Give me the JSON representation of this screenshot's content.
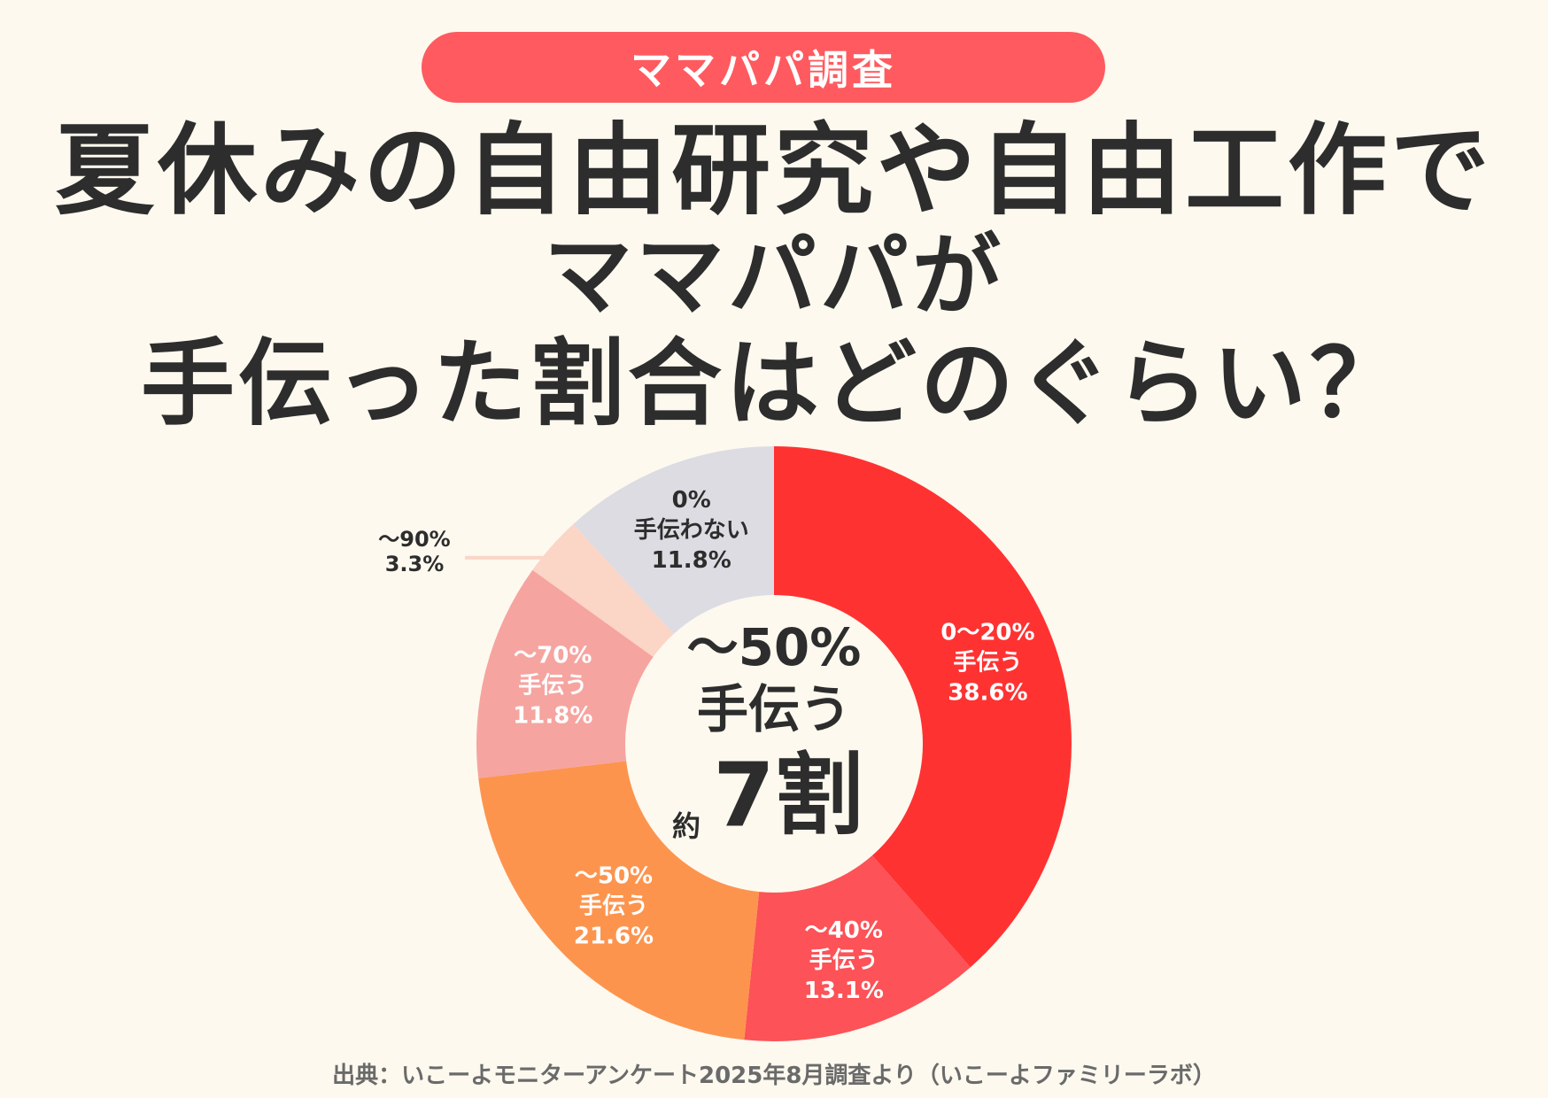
{
  "header": {
    "badge": "ママパパ調査",
    "title_lines": [
      "夏休みの自由研究や自由工作で",
      "ママパパが",
      "手伝った割合はどのぐらい？"
    ]
  },
  "chart_data": {
    "type": "pie",
    "style": "donut",
    "categories": [
      "0〜20% 手伝う",
      "〜40% 手伝う",
      "〜50% 手伝う",
      "〜70% 手伝う",
      "〜90%",
      "0% 手伝わない"
    ],
    "values": [
      38.6,
      13.1,
      21.6,
      11.8,
      3.3,
      11.8
    ],
    "unit": "%",
    "colors": [
      "#ff3232",
      "#fd5257",
      "#fd944e",
      "#f6a4a0",
      "#fbd5c6",
      "#dcdce2"
    ],
    "slice_labels": [
      {
        "lines": [
          "0〜20%",
          "手伝う",
          "38.6%"
        ],
        "color": "#ffffff"
      },
      {
        "lines": [
          "〜40%",
          "手伝う",
          "13.1%"
        ],
        "color": "#ffffff"
      },
      {
        "lines": [
          "〜50%",
          "手伝う",
          "21.6%"
        ],
        "color": "#ffffff"
      },
      {
        "lines": [
          "〜70%",
          "手伝う",
          "11.8%"
        ],
        "color": "#ffffff"
      },
      {
        "lines": [
          "〜90%",
          "3.3%"
        ],
        "color": "#2d2d2d"
      },
      {
        "lines": [
          "0%",
          "手伝わない",
          "11.8%"
        ],
        "color": "#2d2d2d"
      }
    ],
    "center_text": {
      "line1": "〜50%",
      "line2": "手伝う",
      "prefix": "約",
      "value": "7割"
    }
  },
  "footer": {
    "source": "出典：いこーよモニターアンケート2025年8月調査より（いこーよファミリーラボ）"
  }
}
